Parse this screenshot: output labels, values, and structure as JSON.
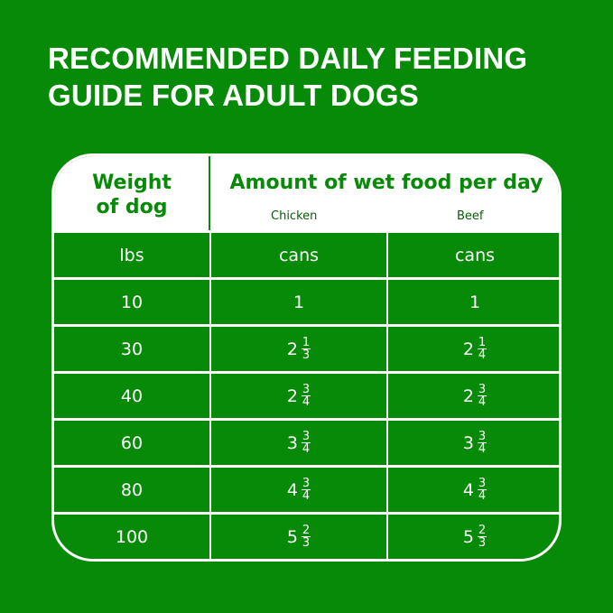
{
  "title": {
    "line1": "RECOMMENDED DAILY FEEDING",
    "line2": "GUIDE FOR ADULT DOGS"
  },
  "colors": {
    "background": "#078a07",
    "header": "#ffffff",
    "text_green": "#078a07"
  },
  "table": {
    "header": {
      "weight_line1": "Weight",
      "weight_line2": "of dog",
      "amount": "Amount of wet food per day",
      "chicken": "Chicken",
      "beef": "Beef"
    },
    "units": {
      "weight": "lbs",
      "chicken": "cans",
      "beef": "cans"
    },
    "rows": [
      {
        "weight": "10",
        "chicken": {
          "whole": "1",
          "num": "",
          "den": ""
        },
        "beef": {
          "whole": "1",
          "num": "",
          "den": ""
        }
      },
      {
        "weight": "30",
        "chicken": {
          "whole": "2",
          "num": "1",
          "den": "3"
        },
        "beef": {
          "whole": "2",
          "num": "1",
          "den": "4"
        }
      },
      {
        "weight": "40",
        "chicken": {
          "whole": "2",
          "num": "3",
          "den": "4"
        },
        "beef": {
          "whole": "2",
          "num": "3",
          "den": "4"
        }
      },
      {
        "weight": "60",
        "chicken": {
          "whole": "3",
          "num": "3",
          "den": "4"
        },
        "beef": {
          "whole": "3",
          "num": "3",
          "den": "4"
        }
      },
      {
        "weight": "80",
        "chicken": {
          "whole": "4",
          "num": "3",
          "den": "4"
        },
        "beef": {
          "whole": "4",
          "num": "3",
          "den": "4"
        }
      },
      {
        "weight": "100",
        "chicken": {
          "whole": "5",
          "num": "2",
          "den": "3"
        },
        "beef": {
          "whole": "5",
          "num": "2",
          "den": "3"
        }
      }
    ]
  }
}
